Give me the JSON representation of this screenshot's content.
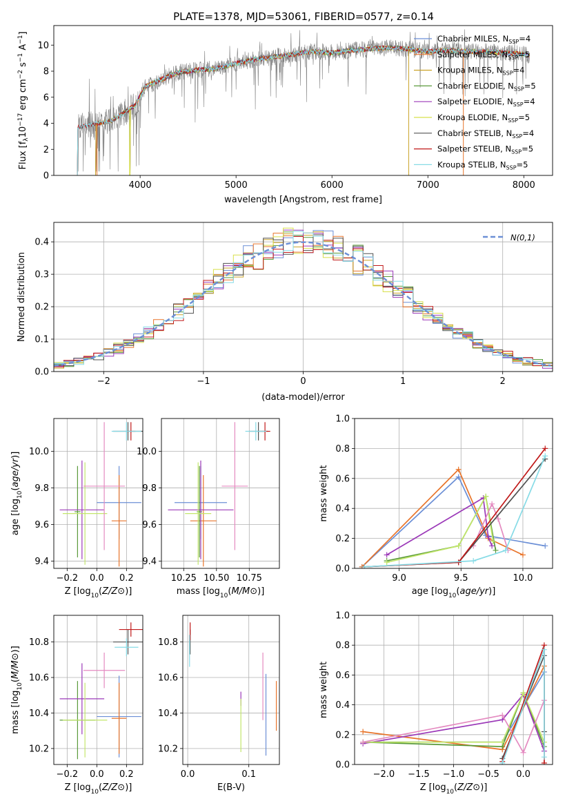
{
  "figure": {
    "title": "PLATE=1378, MJD=53061, FIBERID=0577, z=0.14"
  },
  "palette": {
    "Chabrier MILES": "#6b8fd6",
    "Salpeter MILES": "#e8742a",
    "Kroupa MILES": "#c9a227",
    "Chabrier ELODIE": "#5a9a3a",
    "Salpeter ELODIE": "#9b38b8",
    "Kroupa ELODIE": "#d8e04a",
    "Chabrier STELIB": "#505050",
    "Salpeter STELIB": "#c01818",
    "Kroupa STELIB": "#86dbe6",
    "pink": "#e48ac0",
    "lime": "#c2e66a"
  },
  "chart_data": [
    {
      "id": "spectrum",
      "type": "line",
      "title": "PLATE=1378, MJD=53061, FIBERID=0577, z=0.14",
      "xlabel": "wavelength [Angstrom, rest frame]",
      "ylabel_main": "Flux [f",
      "ylabel_sub": "λ",
      "ylabel_rest": "10",
      "ylabel_exp1": "−17",
      "ylabel_mid": " erg cm",
      "ylabel_exp2": "−2",
      "ylabel_s": " s",
      "ylabel_exp3": "−1",
      "ylabel_a": " A",
      "ylabel_exp4": "−1",
      "ylabel_end": "]",
      "xlim": [
        3100,
        8300
      ],
      "ylim": [
        0,
        11.5
      ],
      "xticks": [
        4000,
        5000,
        6000,
        7000,
        8000
      ],
      "yticks": [
        0,
        2,
        4,
        6,
        8,
        10
      ],
      "grid": false,
      "legend_position": "top-right",
      "legend": [
        {
          "name": "Chabrier MILES",
          "nssp": "4"
        },
        {
          "name": "Salpeter MILES",
          "nssp": "5"
        },
        {
          "name": "Kroupa MILES",
          "nssp": "4"
        },
        {
          "name": "Chabrier ELODIE",
          "nssp": "5"
        },
        {
          "name": "Salpeter ELODIE",
          "nssp": "4"
        },
        {
          "name": "Kroupa ELODIE",
          "nssp": "5"
        },
        {
          "name": "Chabrier STELIB",
          "nssp": "4"
        },
        {
          "name": "Salpeter STELIB",
          "nssp": "5"
        },
        {
          "name": "Kroupa STELIB",
          "nssp": "5"
        }
      ],
      "nssp_prefix": "N",
      "nssp_sub": "SSP",
      "continuum": {
        "wavelength": [
          3350,
          3500,
          3700,
          3850,
          3950,
          4050,
          4200,
          4400,
          4600,
          4800,
          5000,
          5200,
          5400,
          5600,
          5800,
          6000,
          6200,
          6400,
          6600,
          6800,
          7000,
          7200,
          7400,
          7600,
          7800,
          8000,
          8060
        ],
        "flux": [
          3.7,
          3.9,
          4.2,
          4.9,
          5.4,
          6.8,
          7.3,
          7.9,
          8.1,
          8.2,
          8.6,
          8.9,
          9.1,
          9.3,
          9.5,
          9.4,
          9.6,
          9.7,
          9.8,
          9.7,
          9.5,
          9.6,
          9.5,
          9.5,
          9.4,
          9.3,
          9.2
        ]
      },
      "model_starts": [
        {
          "model": "Chabrier MILES",
          "start": 3540
        },
        {
          "model": "Salpeter MILES",
          "start": 3540
        },
        {
          "model": "Kroupa MILES",
          "start": 3540
        },
        {
          "model": "Chabrier ELODIE",
          "start": 3900
        },
        {
          "model": "Salpeter ELODIE",
          "start": 3900
        },
        {
          "model": "Kroupa ELODIE",
          "start": 3900
        },
        {
          "model": "Chabrier STELIB",
          "start": 3350
        },
        {
          "model": "Salpeter STELIB",
          "start": 3350
        },
        {
          "model": "Kroupa STELIB",
          "start": 3350
        }
      ]
    },
    {
      "id": "residuals",
      "type": "histogram",
      "xlabel": "(data-model)/error",
      "ylabel": "Normed distribution",
      "xlim": [
        -2.5,
        2.5
      ],
      "ylim": [
        0,
        0.46
      ],
      "xticks": [
        -2,
        -1,
        0,
        1,
        2
      ],
      "yticks": [
        0.0,
        0.1,
        0.2,
        0.3,
        0.4
      ],
      "grid": true,
      "legend_position": "top-right",
      "legend_label": "N(0,1)",
      "bin_width": 0.1,
      "gaussian": {
        "mean": 0,
        "sigma": 1
      }
    },
    {
      "id": "age-vs-z",
      "type": "errorbar",
      "xlabel": "Z [log10(Z/Z⊙)]",
      "ylabel": "age  [log10(age/yr)]",
      "xlim": [
        -0.29,
        0.31
      ],
      "ylim": [
        9.36,
        10.18
      ],
      "xticks": [
        -0.2,
        0.0,
        0.2
      ],
      "yticks": [
        9.4,
        9.6,
        9.8,
        10.0
      ],
      "grid": true,
      "points": [
        {
          "c": "Chabrier MILES",
          "x": 0.15,
          "xe": 0.15,
          "y": 9.72,
          "ye": 0.2
        },
        {
          "c": "Salpeter MILES",
          "x": 0.15,
          "xe": 0.05,
          "y": 9.62,
          "ye": 0.25
        },
        {
          "c": "Chabrier ELODIE",
          "x": -0.13,
          "xe": 0.02,
          "y": 9.67,
          "ye": 0.25
        },
        {
          "c": "Salpeter ELODIE",
          "x": -0.1,
          "xe": 0.15,
          "y": 9.68,
          "ye": 0.27
        },
        {
          "c": "lime",
          "x": -0.08,
          "xe": 0.15,
          "y": 9.66,
          "ye": 0.28
        },
        {
          "c": "pink",
          "x": 0.05,
          "xe": 0.14,
          "y": 9.81,
          "ye": 0.35
        },
        {
          "c": "Chabrier STELIB",
          "x": 0.21,
          "xe": 0.1,
          "y": 10.11,
          "ye": 0.05
        },
        {
          "c": "Salpeter STELIB",
          "x": 0.23,
          "xe": 0.03,
          "y": 10.11,
          "ye": 0.05
        },
        {
          "c": "Kroupa STELIB",
          "x": 0.2,
          "xe": 0.1,
          "y": 10.11,
          "ye": 0.05
        }
      ]
    },
    {
      "id": "age-vs-mass",
      "type": "errorbar",
      "xlabel": "mass [log10(M/M⊙)]",
      "ylabel": "",
      "xlim": [
        10.08,
        10.98
      ],
      "ylim": [
        9.36,
        10.18
      ],
      "xticks": [
        10.25,
        10.5,
        10.75
      ],
      "yticks": [
        9.4,
        9.6,
        9.8,
        10.0
      ],
      "grid": true,
      "points": [
        {
          "c": "Chabrier MILES",
          "x": 10.38,
          "xe": 0.2,
          "y": 9.72,
          "ye": 0.2
        },
        {
          "c": "Salpeter MILES",
          "x": 10.4,
          "xe": 0.1,
          "y": 9.62,
          "ye": 0.25
        },
        {
          "c": "Chabrier ELODIE",
          "x": 10.37,
          "xe": 0.02,
          "y": 9.67,
          "ye": 0.25
        },
        {
          "c": "Salpeter ELODIE",
          "x": 10.38,
          "xe": 0.25,
          "y": 9.68,
          "ye": 0.27
        },
        {
          "c": "lime",
          "x": 10.36,
          "xe": 0.1,
          "y": 9.66,
          "ye": 0.28
        },
        {
          "c": "pink",
          "x": 10.64,
          "xe": 0.1,
          "y": 9.81,
          "ye": 0.35
        },
        {
          "c": "Chabrier STELIB",
          "x": 10.82,
          "xe": 0.07,
          "y": 10.11,
          "ye": 0.05
        },
        {
          "c": "Salpeter STELIB",
          "x": 10.87,
          "xe": 0.04,
          "y": 10.11,
          "ye": 0.05
        },
        {
          "c": "Kroupa STELIB",
          "x": 10.8,
          "xe": 0.08,
          "y": 10.11,
          "ye": 0.05
        }
      ]
    },
    {
      "id": "weight-vs-age",
      "type": "line",
      "xlabel": "age  [log10(age/yr)]",
      "ylabel": "mass weight",
      "xlim": [
        8.64,
        10.24
      ],
      "ylim": [
        0,
        1
      ],
      "xticks": [
        9.0,
        9.5,
        10.0
      ],
      "yticks": [
        0.0,
        0.2,
        0.4,
        0.6,
        0.8,
        1.0
      ],
      "grid": true,
      "series": [
        {
          "c": "Chabrier MILES",
          "x": [
            8.7,
            9.48,
            9.7,
            10.18
          ],
          "y": [
            0.01,
            0.61,
            0.22,
            0.15
          ]
        },
        {
          "c": "Salpeter MILES",
          "x": [
            8.7,
            9.48,
            9.72,
            10.0
          ],
          "y": [
            0.01,
            0.66,
            0.2,
            0.09
          ]
        },
        {
          "c": "Chabrier ELODIE",
          "x": [
            8.9,
            9.48,
            9.7,
            9.78
          ],
          "y": [
            0.05,
            0.15,
            0.48,
            0.12
          ]
        },
        {
          "c": "Salpeter ELODIE",
          "x": [
            8.9,
            9.68,
            9.72,
            9.75
          ],
          "y": [
            0.09,
            0.47,
            0.21,
            0.15
          ]
        },
        {
          "c": "lime",
          "x": [
            8.9,
            9.48,
            9.7,
            9.76
          ],
          "y": [
            0.04,
            0.15,
            0.48,
            0.18
          ]
        },
        {
          "c": "pink",
          "x": [
            9.6,
            9.75,
            9.8,
            9.88
          ],
          "y": [
            0.15,
            0.43,
            0.33,
            0.12
          ]
        },
        {
          "c": "Chabrier STELIB",
          "x": [
            8.72,
            9.48,
            10.18
          ],
          "y": [
            0.01,
            0.04,
            0.73
          ]
        },
        {
          "c": "Salpeter STELIB",
          "x": [
            8.72,
            9.48,
            10.18
          ],
          "y": [
            0.01,
            0.04,
            0.8
          ]
        },
        {
          "c": "Kroupa STELIB",
          "x": [
            8.72,
            9.6,
            9.86,
            10.18
          ],
          "y": [
            0.01,
            0.05,
            0.12,
            0.75
          ]
        }
      ]
    },
    {
      "id": "mass-vs-z",
      "type": "errorbar",
      "xlabel": "Z [log10(Z/Z⊙)]",
      "ylabel": "mass [log10(M/M⊙)]",
      "xlim": [
        -0.29,
        0.31
      ],
      "ylim": [
        10.11,
        10.95
      ],
      "xticks": [
        -0.2,
        0.0,
        0.2
      ],
      "yticks": [
        10.2,
        10.4,
        10.6,
        10.8
      ],
      "grid": true,
      "points": [
        {
          "c": "Chabrier MILES",
          "x": 0.15,
          "xe": 0.15,
          "y": 10.38,
          "ye": 0.23
        },
        {
          "c": "Salpeter MILES",
          "x": 0.15,
          "xe": 0.05,
          "y": 10.37,
          "ye": 0.2
        },
        {
          "c": "Chabrier ELODIE",
          "x": -0.13,
          "xe": 0.12,
          "y": 10.36,
          "ye": 0.22
        },
        {
          "c": "Salpeter ELODIE",
          "x": -0.1,
          "xe": 0.15,
          "y": 10.48,
          "ye": 0.2
        },
        {
          "c": "lime",
          "x": -0.08,
          "xe": 0.15,
          "y": 10.36,
          "ye": 0.21
        },
        {
          "c": "pink",
          "x": 0.05,
          "xe": 0.14,
          "y": 10.64,
          "ye": 0.1
        },
        {
          "c": "Chabrier STELIB",
          "x": 0.21,
          "xe": 0.1,
          "y": 10.8,
          "ye": 0.07
        },
        {
          "c": "Salpeter STELIB",
          "x": 0.23,
          "xe": 0.08,
          "y": 10.87,
          "ye": 0.04
        },
        {
          "c": "Kroupa STELIB",
          "x": 0.2,
          "xe": 0.08,
          "y": 10.77,
          "ye": 0.05
        }
      ]
    },
    {
      "id": "mass-vs-ebv",
      "type": "errorbar",
      "xlabel": "E(B-V)",
      "ylabel": "",
      "xlim": [
        -0.008,
        0.15
      ],
      "ylim": [
        10.11,
        10.95
      ],
      "xticks": [
        0.0,
        0.1
      ],
      "yticks": [
        10.2,
        10.4,
        10.6,
        10.8
      ],
      "grid": true,
      "points": [
        {
          "c": "Chabrier MILES",
          "x": 0.128,
          "xe": 0,
          "y": 10.39,
          "ye": 0.23
        },
        {
          "c": "Salpeter MILES",
          "x": 0.145,
          "xe": 0,
          "y": 10.44,
          "ye": 0.14
        },
        {
          "c": "Salpeter ELODIE",
          "x": 0.087,
          "xe": 0,
          "y": 10.48,
          "ye": 0.04
        },
        {
          "c": "lime",
          "x": 0.087,
          "xe": 0,
          "y": 10.33,
          "ye": 0.15
        },
        {
          "c": "pink",
          "x": 0.123,
          "xe": 0,
          "y": 10.55,
          "ye": 0.19
        },
        {
          "c": "Chabrier STELIB",
          "x": 0.004,
          "xe": 0,
          "y": 10.8,
          "ye": 0.07
        },
        {
          "c": "Salpeter STELIB",
          "x": 0.004,
          "xe": 0,
          "y": 10.86,
          "ye": 0.05
        },
        {
          "c": "Kroupa STELIB",
          "x": 0.003,
          "xe": 0,
          "y": 10.75,
          "ye": 0.09
        }
      ]
    },
    {
      "id": "weight-vs-z",
      "type": "line",
      "xlabel": "Z [log10(Z/Z⊙)]",
      "ylabel": "mass weight",
      "xlim": [
        -2.42,
        0.42
      ],
      "ylim": [
        0,
        1
      ],
      "xticks": [
        -2.0,
        -1.5,
        -1.0,
        -0.5,
        0.0
      ],
      "yticks": [
        0.0,
        0.2,
        0.4,
        0.6,
        0.8,
        1.0
      ],
      "grid": true,
      "series": [
        {
          "c": "Chabrier MILES",
          "x": [
            -2.3,
            -0.3,
            0.3
          ],
          "y": [
            0.15,
            0.15,
            0.62
          ]
        },
        {
          "c": "Salpeter MILES",
          "x": [
            -2.3,
            -0.3,
            0.3
          ],
          "y": [
            0.22,
            0.1,
            0.66
          ]
        },
        {
          "c": "Chabrier ELODIE",
          "x": [
            -2.3,
            -0.3,
            0.0,
            0.3
          ],
          "y": [
            0.15,
            0.12,
            0.48,
            0.12
          ]
        },
        {
          "c": "Salpeter ELODIE",
          "x": [
            -2.3,
            -0.3,
            0.0,
            0.3
          ],
          "y": [
            0.14,
            0.3,
            0.47,
            0.09
          ]
        },
        {
          "c": "lime",
          "x": [
            -2.3,
            -0.3,
            0.0,
            0.3
          ],
          "y": [
            0.15,
            0.15,
            0.48,
            0.15
          ]
        },
        {
          "c": "pink",
          "x": [
            -2.3,
            -0.3,
            0.0,
            0.3
          ],
          "y": [
            0.15,
            0.33,
            0.08,
            0.43
          ]
        },
        {
          "c": "Chabrier STELIB",
          "x": [
            -0.3,
            0.3,
            0.3
          ],
          "y": [
            0.04,
            0.73,
            0.22
          ]
        },
        {
          "c": "Salpeter STELIB",
          "x": [
            -0.3,
            0.3,
            0.3
          ],
          "y": [
            0.02,
            0.8,
            0.01
          ]
        },
        {
          "c": "Kroupa STELIB",
          "x": [
            -0.3,
            0.3,
            0.3
          ],
          "y": [
            0.01,
            0.77,
            0.05
          ]
        }
      ]
    }
  ]
}
